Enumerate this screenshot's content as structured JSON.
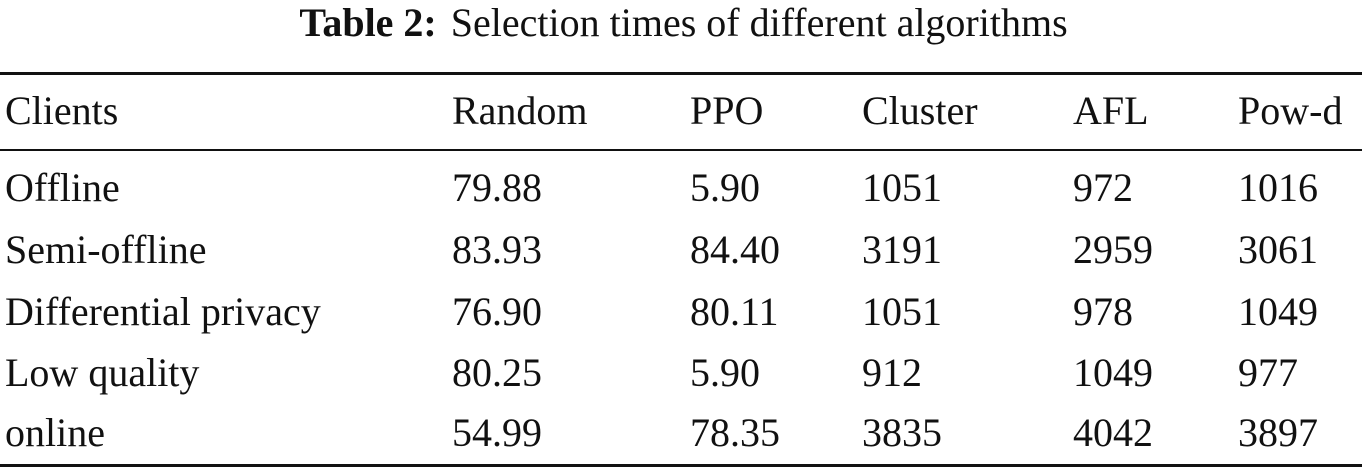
{
  "caption": {
    "label": "Table 2:",
    "title": "Selection times of different algorithms"
  },
  "table": {
    "header": [
      "Clients",
      "Random",
      "PPO",
      "Cluster",
      "AFL",
      "Pow-d"
    ],
    "rows": [
      [
        "Offline",
        "79.88",
        "5.90",
        "1051",
        "972",
        "1016"
      ],
      [
        "Semi-offline",
        "83.93",
        "84.40",
        "3191",
        "2959",
        "3061"
      ],
      [
        "Differential privacy",
        "76.90",
        "80.11",
        "1051",
        "978",
        "1049"
      ],
      [
        "Low quality",
        "80.25",
        "5.90",
        "912",
        "1049",
        "977"
      ],
      [
        "online",
        "54.99",
        "78.35",
        "3835",
        "4042",
        "3897"
      ]
    ]
  }
}
